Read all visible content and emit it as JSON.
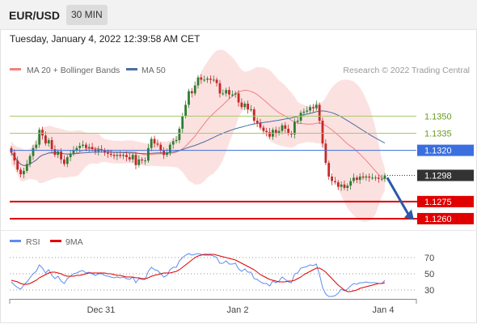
{
  "header": {
    "symbol": "EUR/USD",
    "timeframe": "30 MIN",
    "datetime": "Tuesday, January 4, 2022 12:39:58 AM CET"
  },
  "colors": {
    "candle_up": "#2e7d32",
    "candle_down": "#c62828",
    "band_fill": "#f9c9c9",
    "ma20": "#f08080",
    "ma50": "#4a6fa5",
    "resistance": "#a6c96a",
    "pivot": "#3b6fe0",
    "support": "#e00000",
    "arrow": "#2b5aa8",
    "rsi": "#5b8def",
    "rsi_ma": "#e00000"
  },
  "chart_data": [
    {
      "type": "candlestick",
      "title": "",
      "legend": [
        "MA 20 + Bollinger Bands",
        "MA 50"
      ],
      "legend_position": "top-left",
      "watermark": "Research © 2022 Trading Central",
      "x_ticks": [
        "Dec 31",
        "Jan 2",
        "Jan 4"
      ],
      "ylim": [
        1.125,
        1.1388
      ],
      "levels": [
        {
          "label": "1.1350",
          "value": 1.135,
          "kind": "resistance"
        },
        {
          "label": "1.1335",
          "value": 1.1335,
          "kind": "resistance"
        },
        {
          "label": "1.1320",
          "value": 1.132,
          "kind": "pivot"
        },
        {
          "label": "1.1298",
          "value": 1.1298,
          "kind": "last"
        },
        {
          "label": "1.1275",
          "value": 1.1275,
          "kind": "support"
        },
        {
          "label": "1.1260",
          "value": 1.126,
          "kind": "support"
        }
      ],
      "forecast": {
        "direction": "down",
        "from": 1.1296,
        "to": 1.1261
      },
      "close": [
        1.1318,
        1.1311,
        1.1303,
        1.1299,
        1.1302,
        1.1308,
        1.1315,
        1.1322,
        1.1325,
        1.1338,
        1.1333,
        1.1326,
        1.1329,
        1.1321,
        1.1316,
        1.1319,
        1.1312,
        1.1308,
        1.1314,
        1.1317,
        1.132,
        1.1322,
        1.1324,
        1.1325,
        1.1322,
        1.1323,
        1.1321,
        1.1319,
        1.1321,
        1.132,
        1.1318,
        1.1317,
        1.1316,
        1.1315,
        1.1316,
        1.1315,
        1.1316,
        1.1314,
        1.1312,
        1.1316,
        1.1307,
        1.1312,
        1.1311,
        1.1311,
        1.1322,
        1.133,
        1.1326,
        1.1325,
        1.132,
        1.1316,
        1.1318,
        1.1325,
        1.1328,
        1.1329,
        1.1339,
        1.135,
        1.136,
        1.1372,
        1.137,
        1.1377,
        1.1384,
        1.1382,
        1.1382,
        1.1383,
        1.1382,
        1.1382,
        1.1379,
        1.137,
        1.137,
        1.1373,
        1.1369,
        1.1369,
        1.137,
        1.1362,
        1.1358,
        1.1361,
        1.1356,
        1.1356,
        1.1346,
        1.1344,
        1.134,
        1.1337,
        1.1336,
        1.1332,
        1.1338,
        1.1335,
        1.1337,
        1.1342,
        1.1339,
        1.1335,
        1.1334,
        1.1345,
        1.1346,
        1.1353,
        1.1354,
        1.1355,
        1.1358,
        1.1357,
        1.136,
        1.1346,
        1.1326,
        1.1309,
        1.1297,
        1.1293,
        1.1292,
        1.1288,
        1.129,
        1.1287,
        1.1289,
        1.1293,
        1.1296,
        1.1294,
        1.1297,
        1.1296,
        1.1297,
        1.1296,
        1.1296,
        1.1296,
        1.1295,
        1.1295,
        1.1298
      ]
    },
    {
      "type": "line",
      "title": "RSI",
      "legend": [
        "RSI",
        "9MA"
      ],
      "y_ticks": [
        70,
        50,
        30
      ],
      "ylim": [
        20,
        80
      ],
      "series": [
        {
          "name": "RSI",
          "values": [
            40,
            36,
            33,
            31,
            36,
            40,
            45,
            50,
            53,
            61,
            57,
            51,
            55,
            48,
            44,
            47,
            41,
            38,
            44,
            47,
            50,
            51,
            53,
            54,
            51,
            52,
            50,
            48,
            50,
            50,
            48,
            47,
            46,
            45,
            46,
            45,
            46,
            44,
            43,
            46,
            39,
            44,
            43,
            43,
            53,
            58,
            55,
            54,
            50,
            46,
            48,
            55,
            58,
            58,
            66,
            70,
            73,
            75,
            73,
            74,
            75,
            74,
            73,
            73,
            73,
            72,
            70,
            63,
            63,
            66,
            62,
            62,
            63,
            56,
            53,
            56,
            52,
            52,
            44,
            43,
            40,
            38,
            38,
            35,
            41,
            39,
            41,
            46,
            43,
            40,
            39,
            50,
            51,
            57,
            58,
            59,
            61,
            60,
            62,
            49,
            33,
            25,
            22,
            22,
            23,
            26,
            31,
            29,
            31,
            35,
            38,
            37,
            39,
            39,
            40,
            39,
            39,
            39,
            38,
            38,
            42
          ]
        },
        {
          "name": "9MA",
          "values": [
            42,
            41,
            40,
            38,
            37,
            37,
            38,
            40,
            42,
            45,
            47,
            49,
            51,
            52,
            52,
            51,
            50,
            48,
            47,
            47,
            47,
            48,
            48,
            49,
            50,
            51,
            51,
            51,
            51,
            51,
            51,
            50,
            50,
            49,
            48,
            48,
            47,
            46,
            46,
            46,
            45,
            45,
            44,
            44,
            45,
            47,
            48,
            49,
            50,
            51,
            51,
            51,
            52,
            53,
            55,
            58,
            61,
            64,
            67,
            70,
            72,
            73,
            74,
            74,
            74,
            74,
            73,
            72,
            71,
            70,
            69,
            68,
            67,
            65,
            63,
            61,
            59,
            57,
            55,
            52,
            49,
            47,
            45,
            43,
            42,
            41,
            40,
            40,
            40,
            41,
            41,
            42,
            44,
            46,
            49,
            51,
            53,
            55,
            57,
            57,
            55,
            52,
            48,
            44,
            40,
            36,
            33,
            30,
            28,
            28,
            29,
            30,
            32,
            33,
            34,
            35,
            36,
            37,
            38,
            38,
            39
          ]
        }
      ]
    }
  ]
}
